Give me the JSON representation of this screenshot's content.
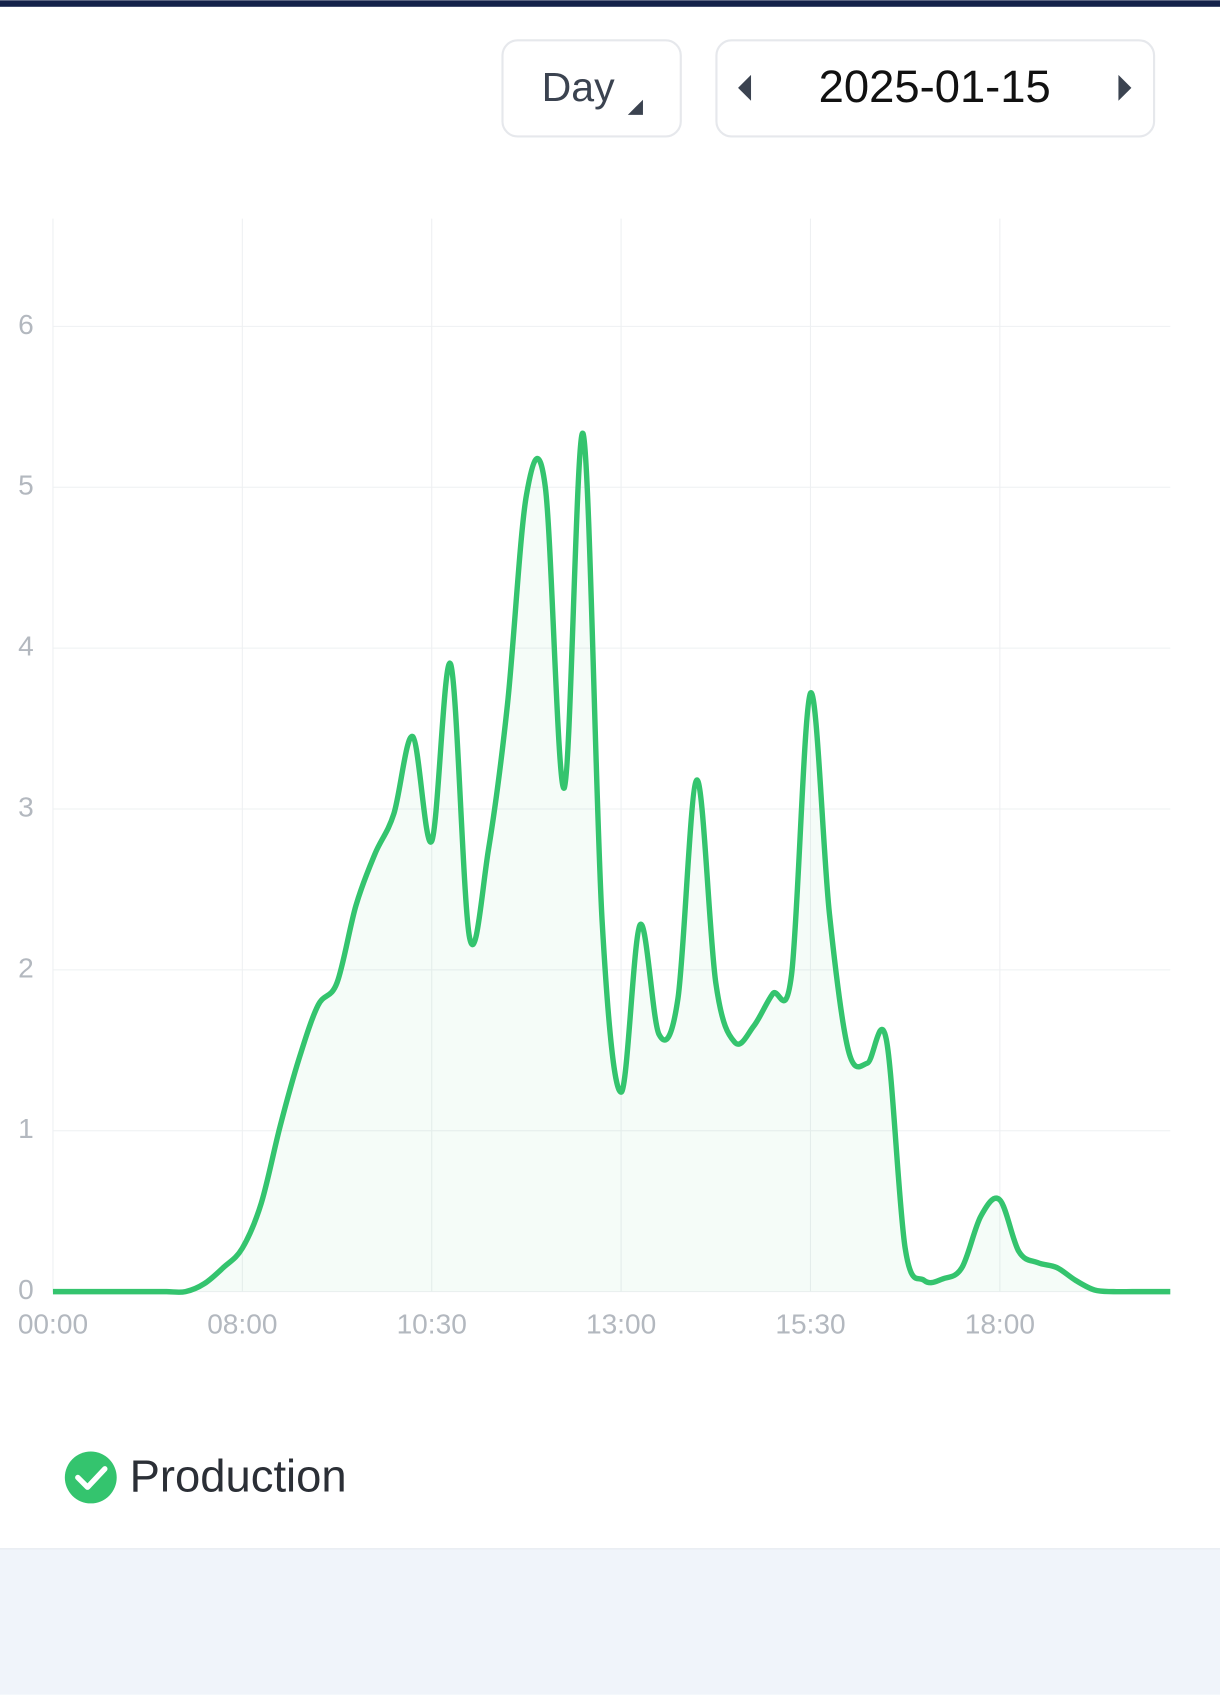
{
  "controls": {
    "period": "Day",
    "date": "2025-01-15"
  },
  "chart_data": {
    "type": "line",
    "categories": [
      "00:00",
      null,
      null,
      null,
      null,
      null,
      null,
      null,
      null,
      null,
      "08:00",
      null,
      null,
      null,
      null,
      null,
      null,
      null,
      null,
      null,
      "10:30",
      null,
      null,
      null,
      null,
      null,
      null,
      null,
      null,
      null,
      "13:00",
      null,
      null,
      null,
      null,
      null,
      null,
      null,
      null,
      null,
      "15:30",
      null,
      null,
      null,
      null,
      null,
      null,
      null,
      null,
      null,
      "18:00",
      null,
      null,
      null,
      null,
      null,
      null,
      null,
      null,
      null
    ],
    "series": [
      {
        "name": "Production",
        "color": "#34c46e",
        "values": [
          0,
          0,
          0,
          0,
          0,
          0,
          0,
          0,
          0.05,
          0.15,
          0.27,
          0.55,
          1.03,
          1.45,
          1.78,
          1.92,
          2.4,
          2.72,
          2.97,
          3.45,
          2.8,
          3.9,
          2.2,
          2.75,
          3.65,
          4.95,
          5.0,
          3.13,
          5.33,
          2.3,
          1.24,
          2.28,
          1.6,
          1.82,
          3.18,
          1.92,
          1.55,
          1.65,
          1.85,
          1.97,
          3.72,
          2.35,
          1.5,
          1.42,
          1.57,
          0.27,
          0.07,
          0.08,
          0.15,
          0.47,
          0.57,
          0.25,
          0.18,
          0.15,
          0.07,
          0.01,
          0,
          0,
          0,
          0
        ]
      }
    ],
    "ylim": [
      0,
      6.67
    ],
    "yticks": [
      0,
      1,
      2,
      3,
      4,
      5,
      6
    ],
    "grid": true
  }
}
